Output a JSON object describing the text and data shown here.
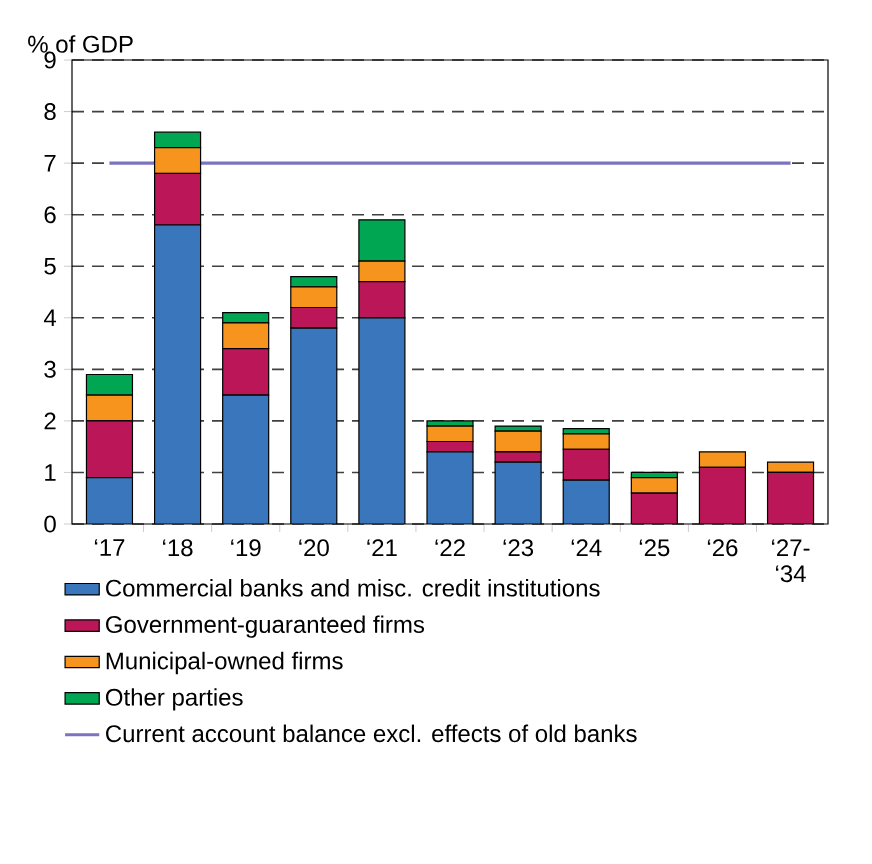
{
  "chart_data": {
    "type": "bar",
    "stacked": true,
    "ylabel": "% of GDP",
    "categories": [
      "‘17",
      "‘18",
      "‘19",
      "‘20",
      "‘21",
      "‘22",
      "‘23",
      "‘24",
      "‘25",
      "‘26",
      "‘27-‘34"
    ],
    "series": [
      {
        "name": "Commercial banks and misc. credit institutions",
        "color": "#3a76bb",
        "values": [
          0.9,
          5.8,
          2.5,
          3.8,
          4.0,
          1.4,
          1.2,
          0.85,
          0,
          0,
          0
        ]
      },
      {
        "name": "Government-guaranteed firms",
        "color": "#bb1657",
        "values": [
          1.1,
          1.0,
          0.9,
          0.4,
          0.7,
          0.2,
          0.2,
          0.6,
          0.6,
          1.1,
          1.0
        ]
      },
      {
        "name": "Municipal-owned firms",
        "color": "#f7941d",
        "values": [
          0.5,
          0.5,
          0.5,
          0.4,
          0.4,
          0.3,
          0.4,
          0.3,
          0.3,
          0.3,
          0.2
        ]
      },
      {
        "name": "Other parties",
        "color": "#00a651",
        "values": [
          0.4,
          0.3,
          0.2,
          0.2,
          0.8,
          0.1,
          0.1,
          0.1,
          0.1,
          0,
          0
        ]
      },
      {
        "name": "Current account balance excl. effects of old banks",
        "type": "line",
        "color": "#7b73c0",
        "values": [
          7,
          null,
          7,
          7,
          7,
          7,
          7,
          7,
          7,
          7,
          7
        ]
      }
    ],
    "ylim": [
      0,
      9
    ],
    "yticks": [
      0,
      1,
      2,
      3,
      4,
      5,
      6,
      7,
      8,
      9
    ],
    "grid": "y",
    "legend": "bottom"
  }
}
